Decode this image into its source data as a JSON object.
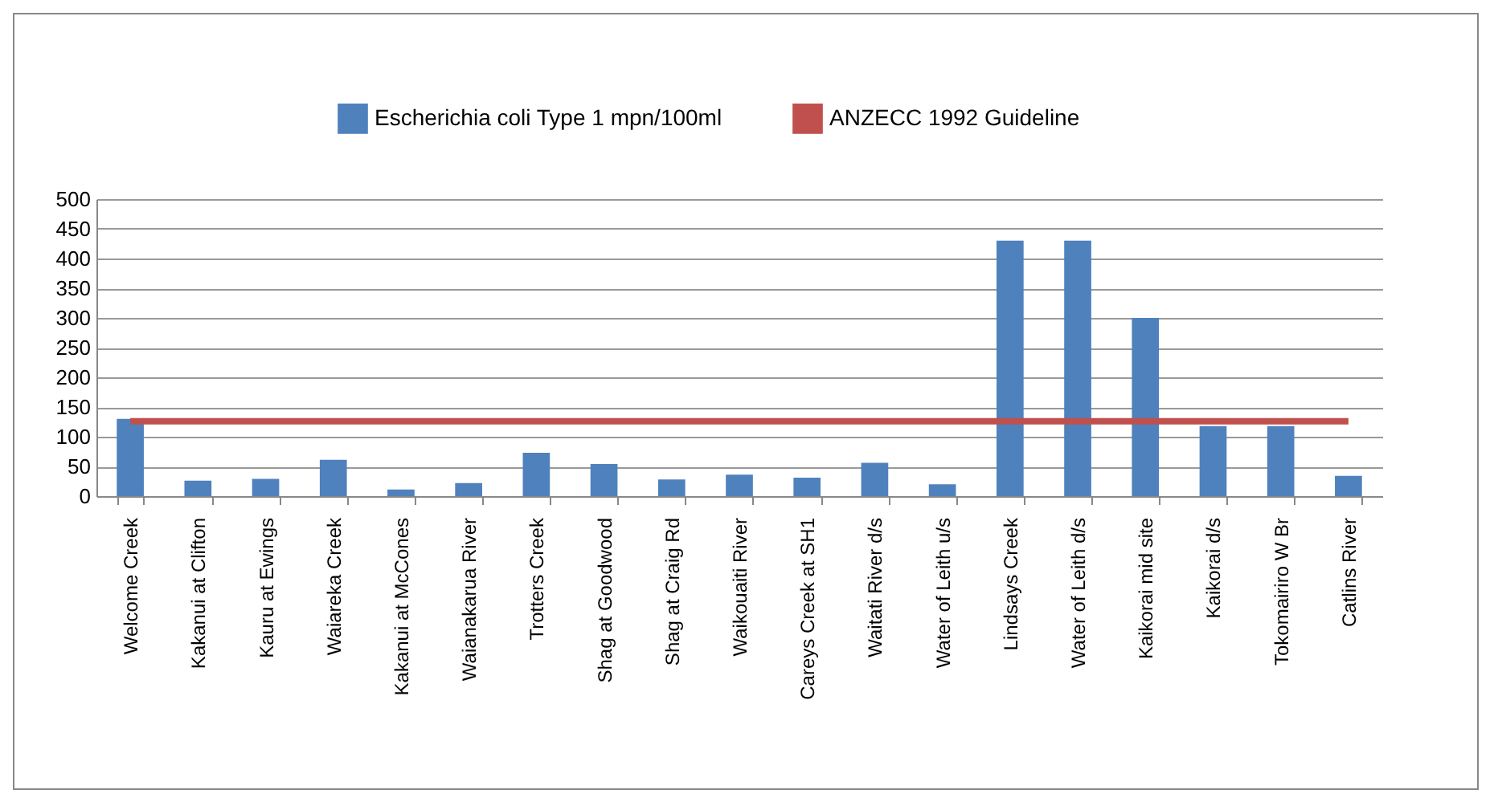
{
  "chart_data": {
    "type": "bar",
    "categories": [
      "Welcome Creek",
      "Kakanui at Clifton",
      "Kauru at Ewings",
      "Waiareka Creek",
      "Kakanui at McCones",
      "Waianakarua River",
      "Trotters Creek",
      "Shag at Goodwood",
      "Shag at Craig Rd",
      "Waikouaiti River",
      "Careys Creek at SH1",
      "Waitati River d/s",
      "Water of Leith u/s",
      "Lindsays Creek",
      "Water of Leith d/s",
      "Kaikorai mid site",
      "Kaikorai d/s",
      "Tokomairiro W Br",
      "Catlins River"
    ],
    "series": [
      {
        "name": "Escherichia coli Type 1 mpn/100ml",
        "color": "#4f81bd",
        "values": [
          130,
          26,
          29,
          61,
          11,
          22,
          73,
          54,
          28,
          36,
          31,
          56,
          20,
          430,
          430,
          300,
          118,
          118,
          34
        ]
      }
    ],
    "ref_lines": [
      {
        "axis": "y",
        "value": 126,
        "label": "ANZECC 1992 Guideline",
        "color": "#c0504d"
      }
    ],
    "ylim": [
      0,
      500
    ],
    "yticks": [
      0,
      50,
      100,
      150,
      200,
      250,
      300,
      350,
      400,
      450,
      500
    ],
    "grid": "y",
    "legend": "top"
  }
}
